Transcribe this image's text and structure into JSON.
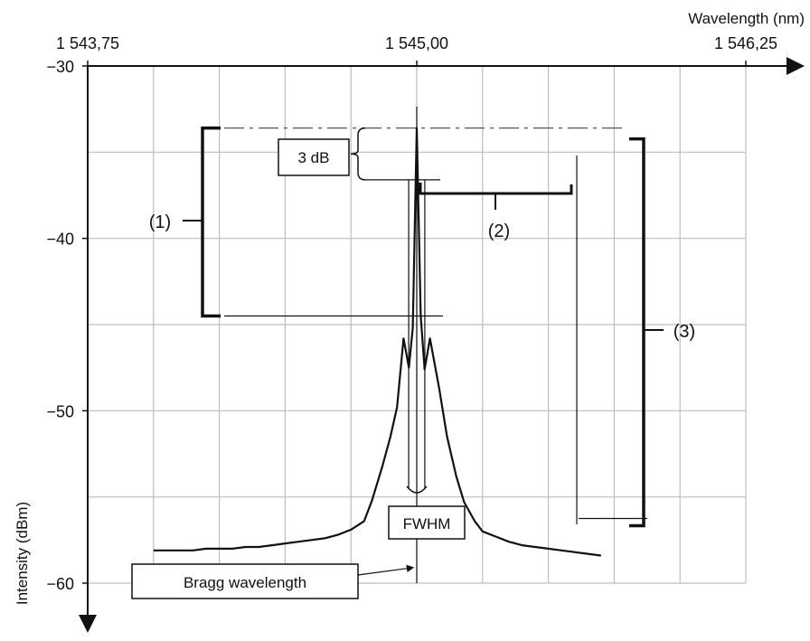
{
  "chart_data": {
    "type": "line",
    "x_axis": {
      "label": "Wavelength (nm)",
      "range": [
        1543.75,
        1546.25
      ],
      "tick_labels": [
        "1 543,75",
        "1 545,00",
        "1 546,25"
      ],
      "tick_values": [
        1543.75,
        1545.0,
        1546.25
      ],
      "position": "top"
    },
    "y_axis": {
      "label": "Intensity (dBm)",
      "range": [
        -60,
        -30
      ],
      "tick_labels": [
        "−30",
        "−40",
        "−50",
        "−60"
      ],
      "tick_values": [
        -30,
        -40,
        -50,
        -60
      ],
      "direction": "downward"
    },
    "grid": true,
    "series": [
      {
        "points": [
          [
            1544.0,
            -58.1
          ],
          [
            1544.05,
            -58.1
          ],
          [
            1544.1,
            -58.1
          ],
          [
            1544.15,
            -58.1
          ],
          [
            1544.2,
            -58.0
          ],
          [
            1544.25,
            -58.0
          ],
          [
            1544.3,
            -58.0
          ],
          [
            1544.35,
            -57.9
          ],
          [
            1544.4,
            -57.9
          ],
          [
            1544.45,
            -57.8
          ],
          [
            1544.5,
            -57.7
          ],
          [
            1544.55,
            -57.6
          ],
          [
            1544.6,
            -57.5
          ],
          [
            1544.65,
            -57.4
          ],
          [
            1544.7,
            -57.2
          ],
          [
            1544.75,
            -56.9
          ],
          [
            1544.8,
            -56.4
          ],
          [
            1544.83,
            -55.2
          ],
          [
            1544.87,
            -53.2
          ],
          [
            1544.9,
            -51.5
          ],
          [
            1544.925,
            -49.8
          ],
          [
            1544.95,
            -45.8
          ],
          [
            1544.97,
            -47.5
          ],
          [
            1544.985,
            -45.2
          ],
          [
            1545.0,
            -33.6
          ],
          [
            1545.015,
            -44.5
          ],
          [
            1545.03,
            -47.6
          ],
          [
            1545.05,
            -45.8
          ],
          [
            1545.085,
            -48.7
          ],
          [
            1545.115,
            -51.5
          ],
          [
            1545.15,
            -53.8
          ],
          [
            1545.18,
            -55.3
          ],
          [
            1545.22,
            -56.4
          ],
          [
            1545.25,
            -57.0
          ],
          [
            1545.3,
            -57.3
          ],
          [
            1545.35,
            -57.6
          ],
          [
            1545.4,
            -57.8
          ],
          [
            1545.45,
            -57.9
          ],
          [
            1545.5,
            -58.0
          ],
          [
            1545.55,
            -58.1
          ],
          [
            1545.6,
            -58.2
          ],
          [
            1545.65,
            -58.3
          ],
          [
            1545.7,
            -58.4
          ]
        ]
      }
    ],
    "annotations": {
      "label_1": "(1)",
      "label_2": "(2)",
      "label_3": "(3)",
      "three_db": "3 dB",
      "fwhm": "FWHM",
      "bragg": "Bragg wavelength"
    },
    "annotation_levels": {
      "peak": -33.6,
      "three_db_level": -36.6,
      "first_sidelobe": -44.5,
      "noise_floor": -57.3,
      "fwhm_x": [
        1544.99,
        1545.01
      ],
      "bragg_x": 1545.0,
      "bragg_y": -59.1
    }
  }
}
